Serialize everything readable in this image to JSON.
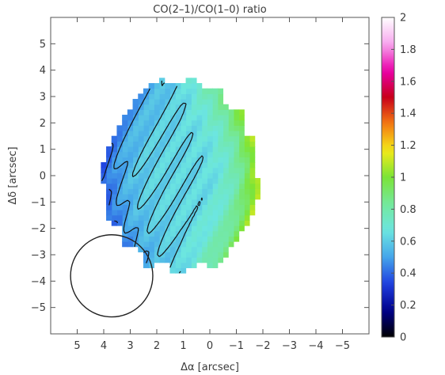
{
  "chart_data": {
    "type": "heatmap",
    "title": "CO(2–1)/CO(1–0) ratio",
    "xlabel": "Δα [arcsec]",
    "ylabel": "Δδ [arcsec]",
    "xlim": [
      6,
      -6
    ],
    "ylim": [
      -6,
      6
    ],
    "x_ticks": [
      5,
      4,
      3,
      2,
      1,
      0,
      -1,
      -2,
      -3,
      -4,
      -5
    ],
    "y_ticks": [
      -5,
      -4,
      -3,
      -2,
      -1,
      0,
      1,
      2,
      3,
      4,
      5
    ],
    "tick_labels_x": [
      "5",
      "4",
      "3",
      "2",
      "1",
      "0",
      "−1",
      "−2",
      "−3",
      "−4",
      "−5"
    ],
    "tick_labels_y": [
      "−5",
      "−4",
      "−3",
      "−2",
      "−1",
      "0",
      "1",
      "2",
      "3",
      "4",
      "5"
    ],
    "colorbar": {
      "range": [
        0,
        2
      ],
      "ticks": [
        0,
        0.2,
        0.4,
        0.6,
        0.8,
        1,
        1.2,
        1.4,
        1.6,
        1.8,
        2
      ],
      "tick_labels": [
        "0",
        "0.2",
        "0.4",
        "0.6",
        "0.8",
        "1",
        "1.2",
        "1.4",
        "1.6",
        "1.8",
        "2"
      ],
      "colormap": [
        "#000000",
        "#00008c",
        "#1f3fe0",
        "#45a5ea",
        "#6ce6e0",
        "#74e89c",
        "#7be436",
        "#f4ea18",
        "#f47a12",
        "#c8001a",
        "#ea00aa",
        "#f7a6ee",
        "#ffffff"
      ]
    },
    "map": {
      "grid_step_arcsec": 0.2,
      "center_arcsec": [
        1.1,
        0.0
      ],
      "semi_axis_x_arcsec": 2.9,
      "semi_axis_y_arcsec": 3.6,
      "east_edge_ratio": 0.38,
      "inner_ratio": 0.62,
      "west_edge_ratio": 1.1
    },
    "contour_levels": [
      0.4,
      0.5,
      0.6
    ],
    "beam": {
      "center_arcsec": [
        3.7,
        -3.8
      ],
      "diameter_arcsec": 3.1
    }
  }
}
